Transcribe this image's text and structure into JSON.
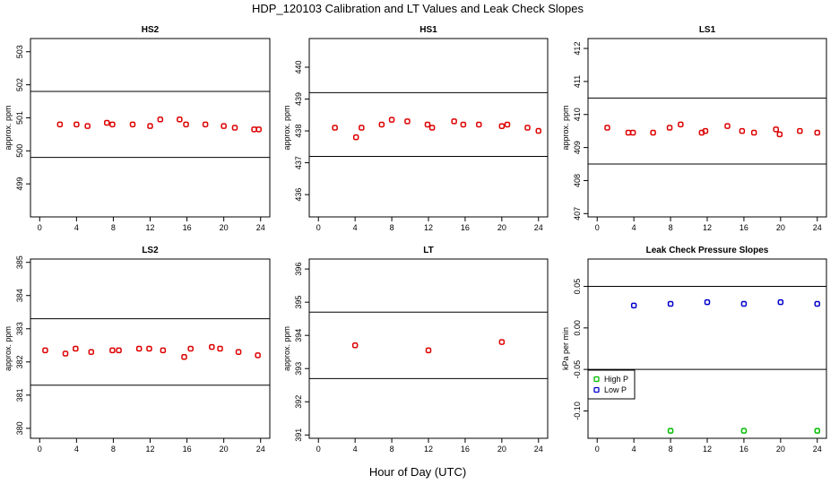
{
  "figure": {
    "title": "HDP_120103  Calibration and LT Values and Leak Check Slopes",
    "xlabel": "Hour of Day (UTC)"
  },
  "chart_data": [
    {
      "type": "scatter",
      "title": "HS2",
      "ylabel": "approx. ppm",
      "xlim": [
        -1,
        25
      ],
      "ylim": [
        498,
        503.4
      ],
      "xticks": [
        0,
        4,
        8,
        12,
        16,
        20,
        24
      ],
      "yticks": [
        499,
        500,
        501,
        502,
        503
      ],
      "hlines": [
        501.8,
        499.8
      ],
      "series": [
        {
          "color": "#dd0000",
          "x": [
            2.2,
            4.0,
            5.2,
            7.3,
            7.9,
            10.1,
            12.0,
            13.1,
            15.2,
            15.9,
            18.0,
            20.0,
            21.2,
            23.3,
            23.8
          ],
          "y": [
            500.8,
            500.8,
            500.75,
            500.85,
            500.8,
            500.8,
            500.75,
            500.95,
            500.95,
            500.8,
            500.8,
            500.75,
            500.7,
            500.65,
            500.65
          ]
        }
      ]
    },
    {
      "type": "scatter",
      "title": "HS1",
      "ylabel": "approx. ppm",
      "xlim": [
        -1,
        25
      ],
      "ylim": [
        435.3,
        440.9
      ],
      "xticks": [
        0,
        4,
        8,
        12,
        16,
        20,
        24
      ],
      "yticks": [
        436,
        437,
        438,
        439,
        440
      ],
      "hlines": [
        439.2,
        437.2
      ],
      "series": [
        {
          "color": "#dd0000",
          "x": [
            1.8,
            4.1,
            4.7,
            6.9,
            8.0,
            9.7,
            11.9,
            12.4,
            14.8,
            15.8,
            17.5,
            20.0,
            20.6,
            22.8,
            24.0
          ],
          "y": [
            438.1,
            437.8,
            438.1,
            438.2,
            438.35,
            438.3,
            438.2,
            438.1,
            438.3,
            438.2,
            438.2,
            438.15,
            438.2,
            438.1,
            438.0
          ]
        }
      ]
    },
    {
      "type": "scatter",
      "title": "LS1",
      "ylabel": "approx. ppm",
      "xlim": [
        -1,
        25
      ],
      "ylim": [
        406.9,
        412.3
      ],
      "xticks": [
        0,
        4,
        8,
        12,
        16,
        20,
        24
      ],
      "yticks": [
        407,
        408,
        409,
        410,
        411,
        412
      ],
      "hlines": [
        410.5,
        408.5
      ],
      "series": [
        {
          "color": "#dd0000",
          "x": [
            1.1,
            3.4,
            3.9,
            6.1,
            7.9,
            9.1,
            11.4,
            11.8,
            14.2,
            15.8,
            17.1,
            19.5,
            19.9,
            22.1,
            24.0
          ],
          "y": [
            409.6,
            409.45,
            409.45,
            409.45,
            409.6,
            409.7,
            409.45,
            409.5,
            409.65,
            409.5,
            409.45,
            409.55,
            409.4,
            409.5,
            409.45
          ]
        }
      ]
    },
    {
      "type": "scatter",
      "title": "LS2",
      "ylabel": "approx. ppm",
      "xlim": [
        -1,
        25
      ],
      "ylim": [
        379.7,
        385.1
      ],
      "xticks": [
        0,
        4,
        8,
        12,
        16,
        20,
        24
      ],
      "yticks": [
        380,
        381,
        382,
        383,
        384,
        385
      ],
      "hlines": [
        383.3,
        381.3
      ],
      "series": [
        {
          "color": "#dd0000",
          "x": [
            0.6,
            2.8,
            3.9,
            5.6,
            7.9,
            8.6,
            10.8,
            11.9,
            13.4,
            15.7,
            16.4,
            18.7,
            19.6,
            21.6,
            23.7
          ],
          "y": [
            382.35,
            382.25,
            382.4,
            382.3,
            382.35,
            382.35,
            382.4,
            382.4,
            382.35,
            382.15,
            382.4,
            382.45,
            382.4,
            382.3,
            382.2
          ]
        }
      ]
    },
    {
      "type": "scatter",
      "title": "LT",
      "ylabel": "approx. ppm",
      "xlim": [
        -1,
        25
      ],
      "ylim": [
        390.9,
        396.3
      ],
      "xticks": [
        0,
        4,
        8,
        12,
        16,
        20,
        24
      ],
      "yticks": [
        391,
        392,
        393,
        394,
        395,
        396
      ],
      "hlines": [
        394.7,
        392.7
      ],
      "series": [
        {
          "color": "#dd0000",
          "x": [
            4.0,
            12.0,
            20.0
          ],
          "y": [
            393.7,
            393.55,
            393.8
          ]
        }
      ]
    },
    {
      "type": "scatter",
      "title": "Leak Check Pressure Slopes",
      "ylabel": "kPa per min",
      "xlim": [
        -1,
        25
      ],
      "ylim": [
        -0.133,
        0.083
      ],
      "xticks": [
        0,
        4,
        8,
        12,
        16,
        20,
        24
      ],
      "yticks": [
        -0.1,
        -0.05,
        0.0,
        0.05
      ],
      "ytick_labels": [
        "-0.10",
        "-0.05",
        "0.00",
        "0.05"
      ],
      "hlines": [
        0.05,
        -0.05
      ],
      "legend": {
        "placement": "left",
        "entries": [
          "High P",
          "Low P"
        ]
      },
      "series": [
        {
          "name": "High P",
          "color": "#00bb00",
          "x": [
            8,
            16,
            24
          ],
          "y": [
            -0.124,
            -0.124,
            -0.124
          ]
        },
        {
          "name": "Low P",
          "color": "#0000cc",
          "x": [
            4,
            8,
            12,
            16,
            20,
            24
          ],
          "y": [
            0.027,
            0.029,
            0.031,
            0.029,
            0.031,
            0.029
          ]
        }
      ]
    }
  ]
}
